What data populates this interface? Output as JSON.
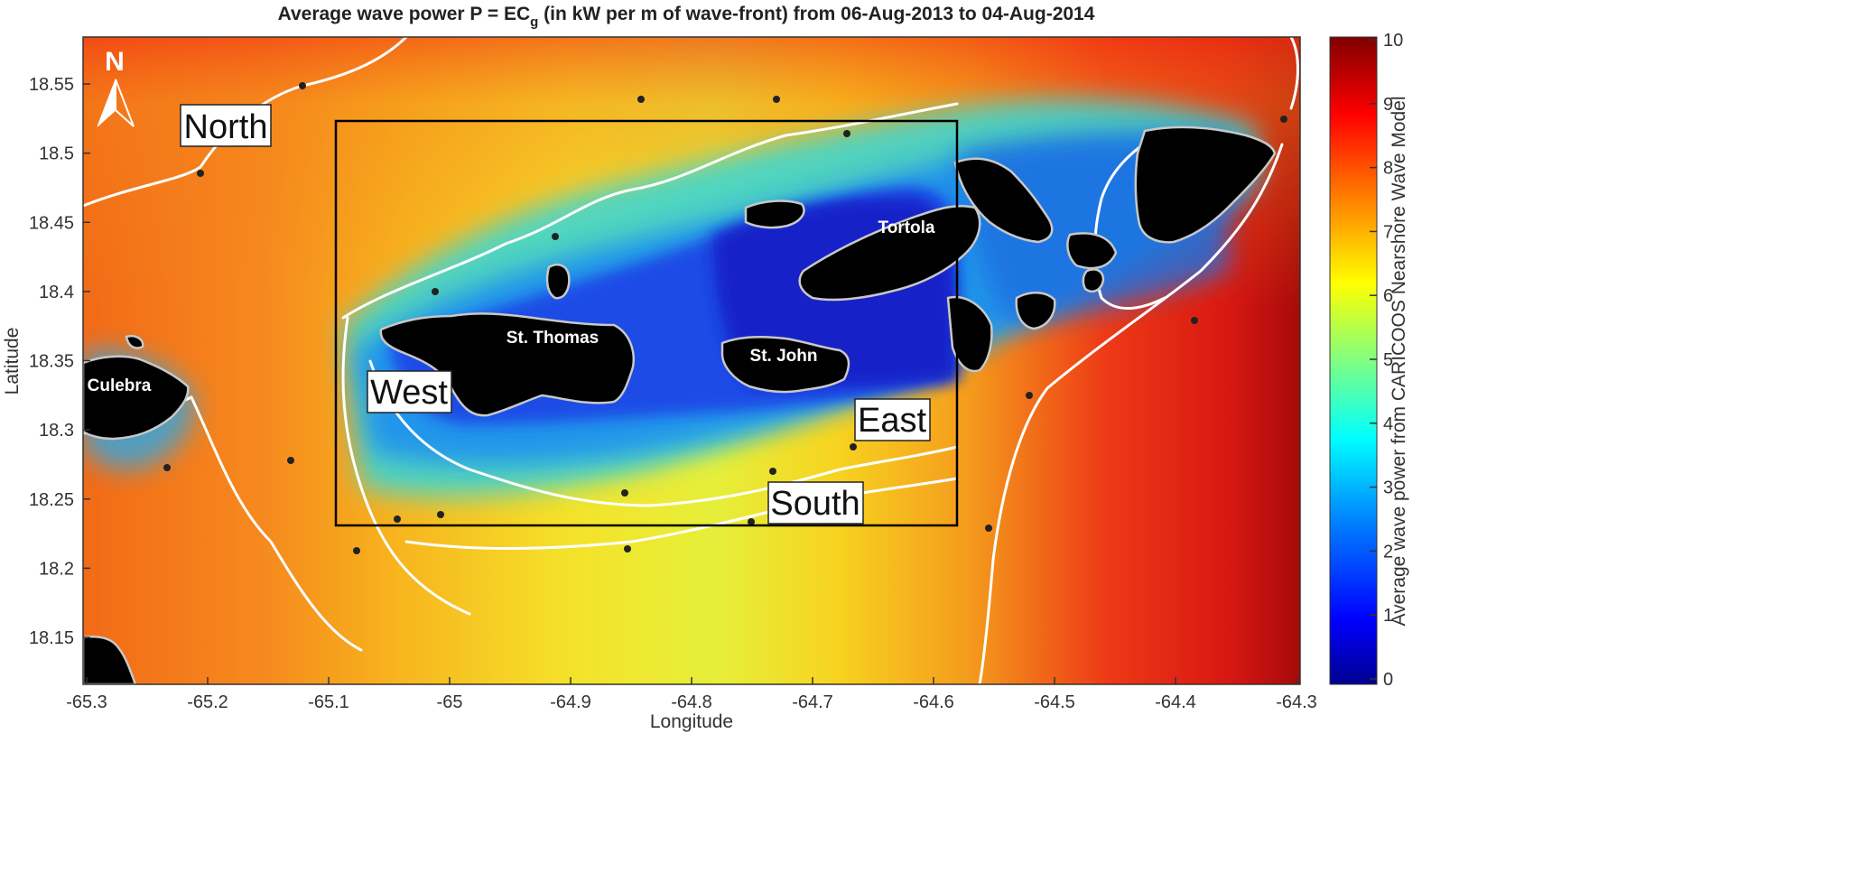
{
  "title": {
    "prefix": "Average wave power P = EC",
    "subscript": "g",
    "suffix": " (in kW per m of wave-front) from 06-Aug-2013 to 04-Aug-2014"
  },
  "axes": {
    "xlabel": "Longitude",
    "ylabel": "Latitude",
    "xticks": [
      "-65.3",
      "-65.2",
      "-65.1",
      "-65",
      "-64.9",
      "-64.8",
      "-64.7",
      "-64.6",
      "-64.5",
      "-64.4",
      "-64.3"
    ],
    "yticks": [
      "18.55",
      "18.5",
      "18.45",
      "18.4",
      "18.35",
      "18.3",
      "18.25",
      "18.2",
      "18.15"
    ]
  },
  "colorbar": {
    "label": "Average wave power from CARICOOS Nearshore Wave Model",
    "ticks": [
      "10",
      "9",
      "8",
      "7",
      "6",
      "5",
      "4",
      "3",
      "2",
      "1",
      "0"
    ],
    "colors": [
      "#00008f",
      "#0000ff",
      "#0080ff",
      "#00ffff",
      "#80ff80",
      "#ffff00",
      "#ff8000",
      "#ff0000",
      "#800000"
    ]
  },
  "regions": {
    "north": "North",
    "west": "West",
    "east": "East",
    "south": "South"
  },
  "islands": {
    "culebra": "Culebra",
    "st_thomas": "St. Thomas",
    "st_john": "St. John",
    "tortola": "Tortola"
  },
  "north_arrow": "N",
  "contour_value": "6",
  "study_box": {
    "lon_min": -65.1,
    "lon_max": -64.585,
    "lat_min": 18.2,
    "lat_max": 18.52
  }
}
